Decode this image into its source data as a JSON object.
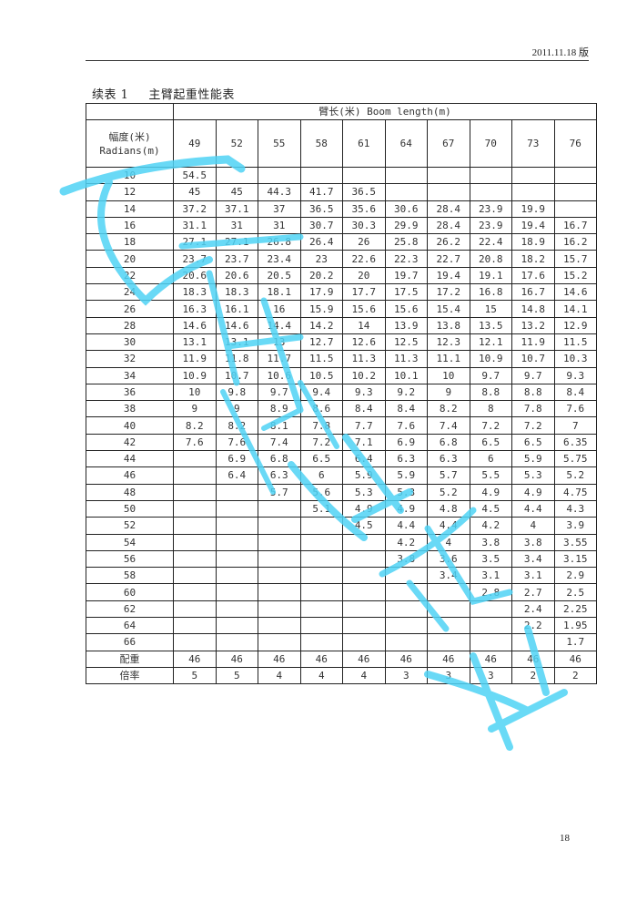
{
  "header": {
    "date": "2011.11.18 版"
  },
  "title": {
    "number": "续表 1",
    "text": "主臂起重性能表"
  },
  "table": {
    "boom_header": "臂长(米) Boom length(m)",
    "radius_header": [
      "幅度(米)",
      "Radians(m)"
    ],
    "boom_lengths": [
      "49",
      "52",
      "55",
      "58",
      "61",
      "64",
      "67",
      "70",
      "73",
      "76"
    ],
    "rows": [
      {
        "radius": "10",
        "values": [
          "54.5",
          "",
          "",
          "",
          "",
          "",
          "",
          "",
          "",
          ""
        ]
      },
      {
        "radius": "12",
        "values": [
          "45",
          "45",
          "44.3",
          "41.7",
          "36.5",
          "",
          "",
          "",
          "",
          ""
        ]
      },
      {
        "radius": "14",
        "values": [
          "37.2",
          "37.1",
          "37",
          "36.5",
          "35.6",
          "30.6",
          "28.4",
          "23.9",
          "19.9",
          ""
        ]
      },
      {
        "radius": "16",
        "values": [
          "31.1",
          "31",
          "31",
          "30.7",
          "30.3",
          "29.9",
          "28.4",
          "23.9",
          "19.4",
          "16.7"
        ]
      },
      {
        "radius": "18",
        "values": [
          "27.1",
          "27.1",
          "26.8",
          "26.4",
          "26",
          "25.8",
          "26.2",
          "22.4",
          "18.9",
          "16.2"
        ]
      },
      {
        "radius": "20",
        "values": [
          "23.7",
          "23.7",
          "23.4",
          "23",
          "22.6",
          "22.3",
          "22.7",
          "20.8",
          "18.2",
          "15.7"
        ]
      },
      {
        "radius": "22",
        "values": [
          "20.6",
          "20.6",
          "20.5",
          "20.2",
          "20",
          "19.7",
          "19.4",
          "19.1",
          "17.6",
          "15.2"
        ]
      },
      {
        "radius": "24",
        "values": [
          "18.3",
          "18.3",
          "18.1",
          "17.9",
          "17.7",
          "17.5",
          "17.2",
          "16.8",
          "16.7",
          "14.6"
        ]
      },
      {
        "radius": "26",
        "values": [
          "16.3",
          "16.1",
          "16",
          "15.9",
          "15.6",
          "15.6",
          "15.4",
          "15",
          "14.8",
          "14.1"
        ]
      },
      {
        "radius": "28",
        "values": [
          "14.6",
          "14.6",
          "14.4",
          "14.2",
          "14",
          "13.9",
          "13.8",
          "13.5",
          "13.2",
          "12.9"
        ]
      },
      {
        "radius": "30",
        "values": [
          "13.1",
          "13.1",
          "13",
          "12.7",
          "12.6",
          "12.5",
          "12.3",
          "12.1",
          "11.9",
          "11.5"
        ]
      },
      {
        "radius": "32",
        "values": [
          "11.9",
          "11.8",
          "11.7",
          "11.5",
          "11.3",
          "11.3",
          "11.1",
          "10.9",
          "10.7",
          "10.3"
        ]
      },
      {
        "radius": "34",
        "values": [
          "10.9",
          "10.7",
          "10.6",
          "10.5",
          "10.2",
          "10.1",
          "10",
          "9.7",
          "9.7",
          "9.3"
        ]
      },
      {
        "radius": "36",
        "values": [
          "10",
          "9.8",
          "9.7",
          "9.4",
          "9.3",
          "9.2",
          "9",
          "8.8",
          "8.8",
          "8.4"
        ]
      },
      {
        "radius": "38",
        "values": [
          "9",
          "9",
          "8.9",
          "8.6",
          "8.4",
          "8.4",
          "8.2",
          "8",
          "7.8",
          "7.6"
        ]
      },
      {
        "radius": "40",
        "values": [
          "8.2",
          "8.2",
          "8.1",
          "7.8",
          "7.7",
          "7.6",
          "7.4",
          "7.2",
          "7.2",
          "7"
        ]
      },
      {
        "radius": "42",
        "values": [
          "7.6",
          "7.6",
          "7.4",
          "7.2",
          "7.1",
          "6.9",
          "6.8",
          "6.5",
          "6.5",
          "6.35"
        ]
      },
      {
        "radius": "44",
        "values": [
          "",
          "6.9",
          "6.8",
          "6.5",
          "6.4",
          "6.3",
          "6.3",
          "6",
          "5.9",
          "5.75"
        ]
      },
      {
        "radius": "46",
        "values": [
          "",
          "6.4",
          "6.3",
          "6",
          "5.9",
          "5.9",
          "5.7",
          "5.5",
          "5.3",
          "5.2"
        ]
      },
      {
        "radius": "48",
        "values": [
          "",
          "",
          "5.7",
          "5.6",
          "5.3",
          "5.3",
          "5.2",
          "4.9",
          "4.9",
          "4.75"
        ]
      },
      {
        "radius": "50",
        "values": [
          "",
          "",
          "",
          "5.1",
          "4.9",
          "4.9",
          "4.8",
          "4.5",
          "4.4",
          "4.3"
        ]
      },
      {
        "radius": "52",
        "values": [
          "",
          "",
          "",
          "",
          "4.5",
          "4.4",
          "4.4",
          "4.2",
          "4",
          "3.9"
        ]
      },
      {
        "radius": "54",
        "values": [
          "",
          "",
          "",
          "",
          "",
          "4.2",
          "4",
          "3.8",
          "3.8",
          "3.55"
        ]
      },
      {
        "radius": "56",
        "values": [
          "",
          "",
          "",
          "",
          "",
          "3.8",
          "3.6",
          "3.5",
          "3.4",
          "3.15"
        ]
      },
      {
        "radius": "58",
        "values": [
          "",
          "",
          "",
          "",
          "",
          "",
          "3.4",
          "3.1",
          "3.1",
          "2.9"
        ]
      },
      {
        "radius": "60",
        "values": [
          "",
          "",
          "",
          "",
          "",
          "",
          "",
          "2.8",
          "2.7",
          "2.5"
        ]
      },
      {
        "radius": "62",
        "values": [
          "",
          "",
          "",
          "",
          "",
          "",
          "",
          "",
          "2.4",
          "2.25"
        ]
      },
      {
        "radius": "64",
        "values": [
          "",
          "",
          "",
          "",
          "",
          "",
          "",
          "",
          "2.2",
          "1.95"
        ]
      },
      {
        "radius": "66",
        "values": [
          "",
          "",
          "",
          "",
          "",
          "",
          "",
          "",
          "",
          "1.7"
        ]
      },
      {
        "radius": "配重",
        "values": [
          "46",
          "46",
          "46",
          "46",
          "46",
          "46",
          "46",
          "46",
          "46",
          "46"
        ]
      },
      {
        "radius": "倍率",
        "values": [
          "5",
          "5",
          "4",
          "4",
          "4",
          "3",
          "3",
          "3",
          "2",
          "2"
        ]
      }
    ]
  },
  "page_number": "18",
  "watermark_color": "#4fd3f5"
}
